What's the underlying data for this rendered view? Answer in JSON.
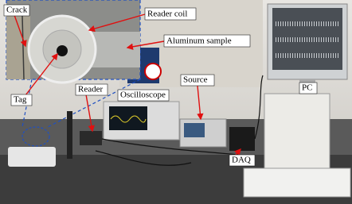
{
  "labels": [
    "Crack",
    "Reader coil",
    "Aluminum sample",
    "Tag",
    "Reader",
    "Oscilloscope",
    "Source",
    "PC",
    "DAQ"
  ]
}
